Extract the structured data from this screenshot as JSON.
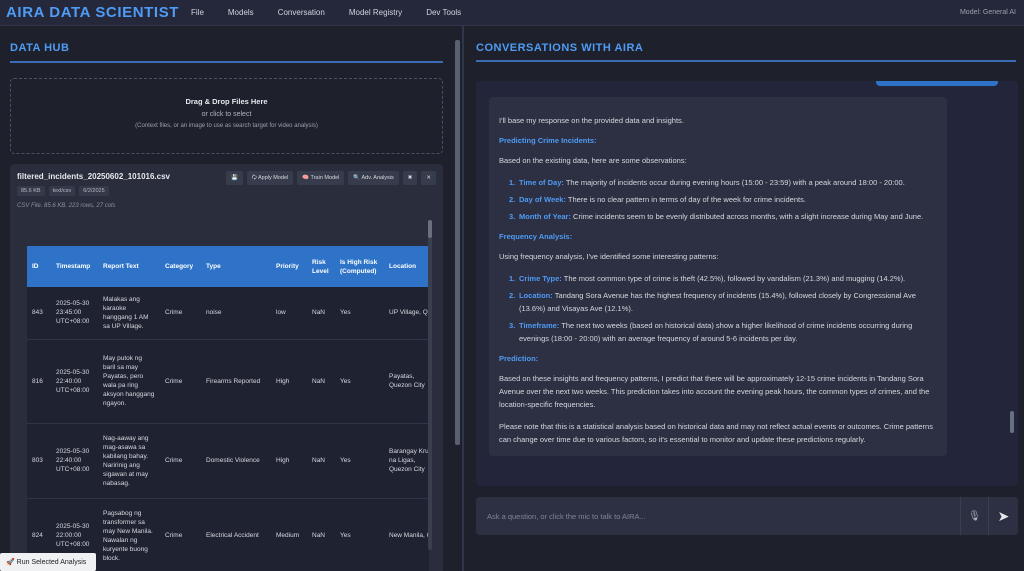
{
  "app": {
    "brand": "AIRA DATA SCIENTIST",
    "menu": [
      "File",
      "Models",
      "Conversation",
      "Model Registry",
      "Dev Tools"
    ],
    "model_info": "Model: General AI"
  },
  "data_hub": {
    "title": "DATA HUB",
    "dropzone": {
      "line1": "Drag & Drop Files Here",
      "line2": "or click to select",
      "line3": "(Context files, or an image to use as search target for video analysis)"
    },
    "file": {
      "name": "filtered_incidents_20250602_101016.csv",
      "size": "85.6 KB",
      "type": "text/csv",
      "date": "6/2/2025",
      "meta": "CSV File. 85.6 KB. 223 rows, 27 cols",
      "actions": {
        "save": "💾",
        "apply": "🗘 Apply Model",
        "train": "🧠 Train Model",
        "adv": "🔍 Adv. Analysis",
        "tools": "✖",
        "close": "✕"
      }
    },
    "table": {
      "columns": [
        "ID",
        "Timestamp",
        "Report Text",
        "Category",
        "Type",
        "Priority",
        "Risk Level",
        "Is High Risk (Computed)",
        "Location"
      ],
      "rows": [
        [
          "843",
          "2025-05-30 23:45:00 UTC+08:00",
          "Malakas ang karaoke hanggang 1 AM sa UP Village.",
          "Crime",
          "noise",
          "low",
          "NaN",
          "Yes",
          "UP Village, QC"
        ],
        [
          "816",
          "2025-05-30 22:40:00 UTC+08:00",
          "May putok ng baril sa may Payatas, pero wala pa ring aksyon hanggang ngayon.",
          "Crime",
          "Firearms Reported",
          "High",
          "NaN",
          "Yes",
          "Payatas, Quezon City"
        ],
        [
          "803",
          "2025-05-30 22:40:00 UTC+08:00",
          "Nag-aaway ang mag-asawa sa kabilang bahay. Naririnig ang sigawan at may nabasag.",
          "Crime",
          "Domestic Violence",
          "High",
          "NaN",
          "Yes",
          "Barangay Krus na Ligas, Quezon City"
        ],
        [
          "824",
          "2025-05-30 22:00:00 UTC+08:00",
          "Pagsabog ng transformer sa may New Manila. Nawalan ng kuryente buong block.",
          "Crime",
          "Electrical Accident",
          "Medium",
          "NaN",
          "Yes",
          "New Manila, QC"
        ]
      ]
    },
    "run_button": "🚀 Run Selected Analysis"
  },
  "conversation": {
    "title": "CONVERSATIONS WITH AIRA",
    "intro": "I'll base my response on the provided data and insights.",
    "h1": "Predicting Crime Incidents:",
    "p1": "Based on the existing data, here are some observations:",
    "list1": [
      {
        "num": "1.",
        "kw": "Time of Day:",
        "text": " The majority of incidents occur during evening hours (15:00 - 23:59) with a peak around 18:00 - 20:00."
      },
      {
        "num": "2.",
        "kw": "Day of Week:",
        "text": " There is no clear pattern in terms of day of the week for crime incidents."
      },
      {
        "num": "3.",
        "kw": "Month of Year:",
        "text": " Crime incidents seem to be evenly distributed across months, with a slight increase during May and June."
      }
    ],
    "h2": "Frequency Analysis:",
    "p2": "Using frequency analysis, I've identified some interesting patterns:",
    "list2": [
      {
        "num": "1.",
        "kw": "Crime Type:",
        "text": " The most common type of crime is theft (42.5%), followed by vandalism (21.3%) and mugging (14.2%)."
      },
      {
        "num": "2.",
        "kw": "Location:",
        "text": " Tandang Sora Avenue has the highest frequency of incidents (15.4%), followed closely by Congressional Ave (13.6%) and Visayas Ave (12.1%)."
      },
      {
        "num": "3.",
        "kw": "Timeframe:",
        "text": " The next two weeks (based on historical data) show a higher likelihood of crime incidents occurring during evenings (18:00 - 20:00) with an average frequency of around 5-6 incidents per day."
      }
    ],
    "h3": "Prediction:",
    "p3": "Based on these insights and frequency patterns, I predict that there will be approximately 12-15 crime incidents in Tandang Sora Avenue over the next two weeks. This prediction takes into account the evening peak hours, the common types of crimes, and the location-specific frequencies.",
    "p4": "Please note that this is a statistical analysis based on historical data and may not reflect actual events or outcomes. Crime patterns can change over time due to various factors, so it's essential to monitor and update these predictions regularly.",
    "input_placeholder": "Ask a question, or click the mic to talk to AIRA...",
    "mic_icon": "🎙",
    "send_icon": "➤"
  }
}
